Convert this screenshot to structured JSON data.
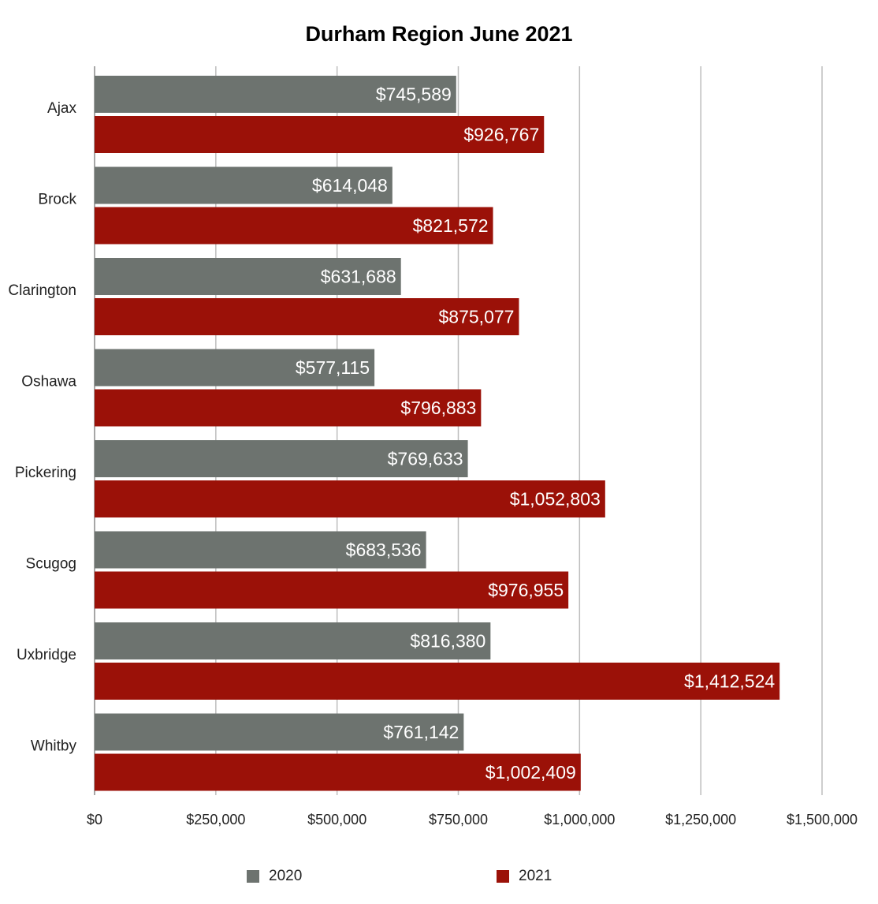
{
  "chart_data": {
    "type": "bar",
    "orientation": "horizontal",
    "title": "Durham Region June 2021",
    "categories": [
      "Ajax",
      "Brock",
      "Clarington",
      "Oshawa",
      "Pickering",
      "Scugog",
      "Uxbridge",
      "Whitby"
    ],
    "series": [
      {
        "name": "2020",
        "color": "#6d736f",
        "values": [
          745589,
          614048,
          631688,
          577115,
          769633,
          683536,
          816380,
          761142
        ],
        "labels": [
          "$745,589",
          "$614,048",
          "$631,688",
          "$577,115",
          "$769,633",
          "$683,536",
          "$816,380",
          "$761,142"
        ]
      },
      {
        "name": "2021",
        "color": "#9b1108",
        "values": [
          926767,
          821572,
          875077,
          796883,
          1052803,
          976955,
          1412524,
          1002409
        ],
        "labels": [
          "$926,767",
          "$821,572",
          "$875,077",
          "$796,883",
          "$1,052,803",
          "$976,955",
          "$1,412,524",
          "$1,002,409"
        ]
      }
    ],
    "xlim": [
      0,
      1500000
    ],
    "xticks": [
      0,
      250000,
      500000,
      750000,
      1000000,
      1250000,
      1500000
    ],
    "xtick_labels": [
      "$0",
      "$250,000",
      "$500,000",
      "$750,000",
      "$1,000,000",
      "$1,250,000",
      "$1,500,000"
    ],
    "xlabel": "",
    "ylabel": "",
    "grid": true,
    "legend_position": "bottom"
  }
}
